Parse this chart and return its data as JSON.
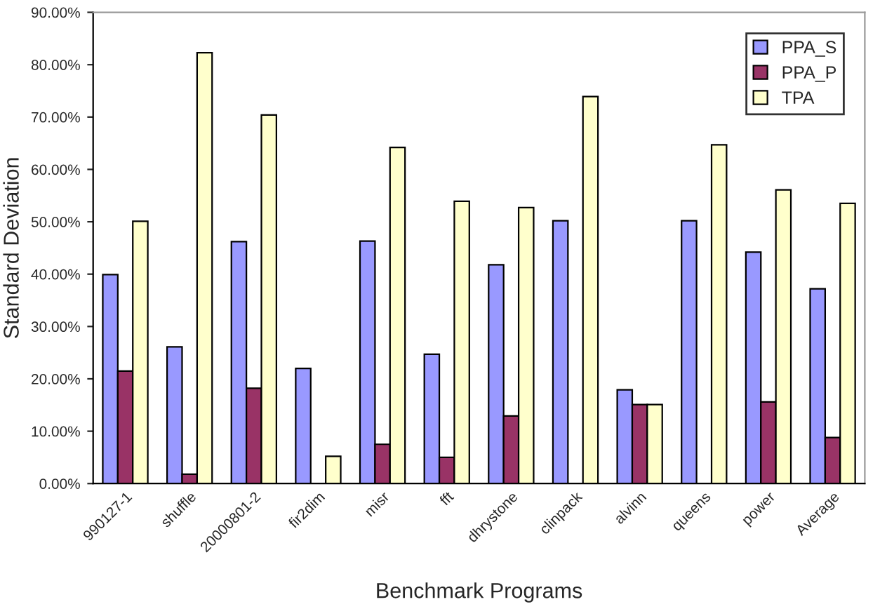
{
  "chart_data": {
    "type": "bar",
    "xlabel": "Benchmark Programs",
    "ylabel": "Standard Deviation",
    "categories": [
      "990127-1",
      "shuffle",
      "20000801-2",
      "fir2dim",
      "misr",
      "fft",
      "dhrystone",
      "clinpack",
      "alvinn",
      "queens",
      "power",
      "Average"
    ],
    "series": [
      {
        "name": "PPA_S",
        "color": "#9999ff",
        "values": [
          39.9,
          26.1,
          46.2,
          22.0,
          46.3,
          24.7,
          41.8,
          50.2,
          17.9,
          50.2,
          44.2,
          37.2
        ]
      },
      {
        "name": "PPA_P",
        "color": "#993366",
        "values": [
          21.5,
          1.8,
          18.2,
          null,
          7.5,
          5.0,
          12.9,
          null,
          15.1,
          null,
          15.6,
          8.8
        ]
      },
      {
        "name": "TPA",
        "color": "#ffffcc",
        "values": [
          50.1,
          82.3,
          70.4,
          5.2,
          64.2,
          53.9,
          52.7,
          73.9,
          15.1,
          64.7,
          56.1,
          53.5
        ]
      }
    ],
    "ylim": [
      0,
      90
    ],
    "yticks": [
      {
        "value": 0,
        "label": "0.00%"
      },
      {
        "value": 10,
        "label": "10.00%"
      },
      {
        "value": 20,
        "label": "20.00%"
      },
      {
        "value": 30,
        "label": "30.00%"
      },
      {
        "value": 40,
        "label": "40.00%"
      },
      {
        "value": 50,
        "label": "50.00%"
      },
      {
        "value": 60,
        "label": "60.00%"
      },
      {
        "value": 70,
        "label": "70.00%"
      },
      {
        "value": 80,
        "label": "80.00%"
      },
      {
        "value": 90,
        "label": "90.00%"
      }
    ],
    "legend": "top right",
    "grid": false
  }
}
